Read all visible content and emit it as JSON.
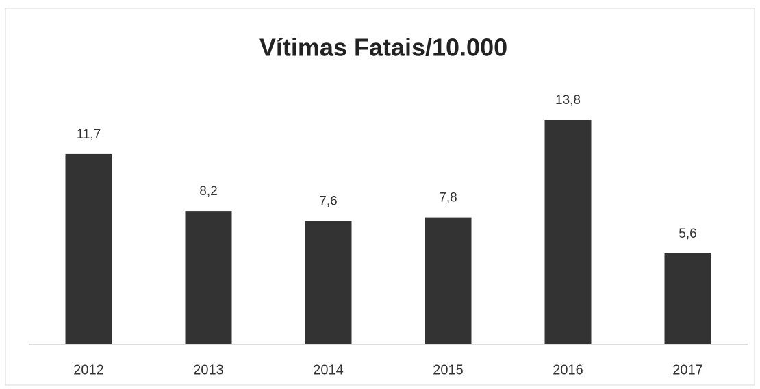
{
  "chart_data": {
    "type": "bar",
    "title": "Vítimas Fatais/10.000",
    "categories": [
      "2012",
      "2013",
      "2014",
      "2015",
      "2016",
      "2017"
    ],
    "values": [
      11.7,
      8.2,
      7.6,
      7.8,
      13.8,
      5.6
    ],
    "value_labels": [
      "11,7",
      "8,2",
      "7,6",
      "7,8",
      "13,8",
      "5,6"
    ],
    "color": "#333333"
  }
}
